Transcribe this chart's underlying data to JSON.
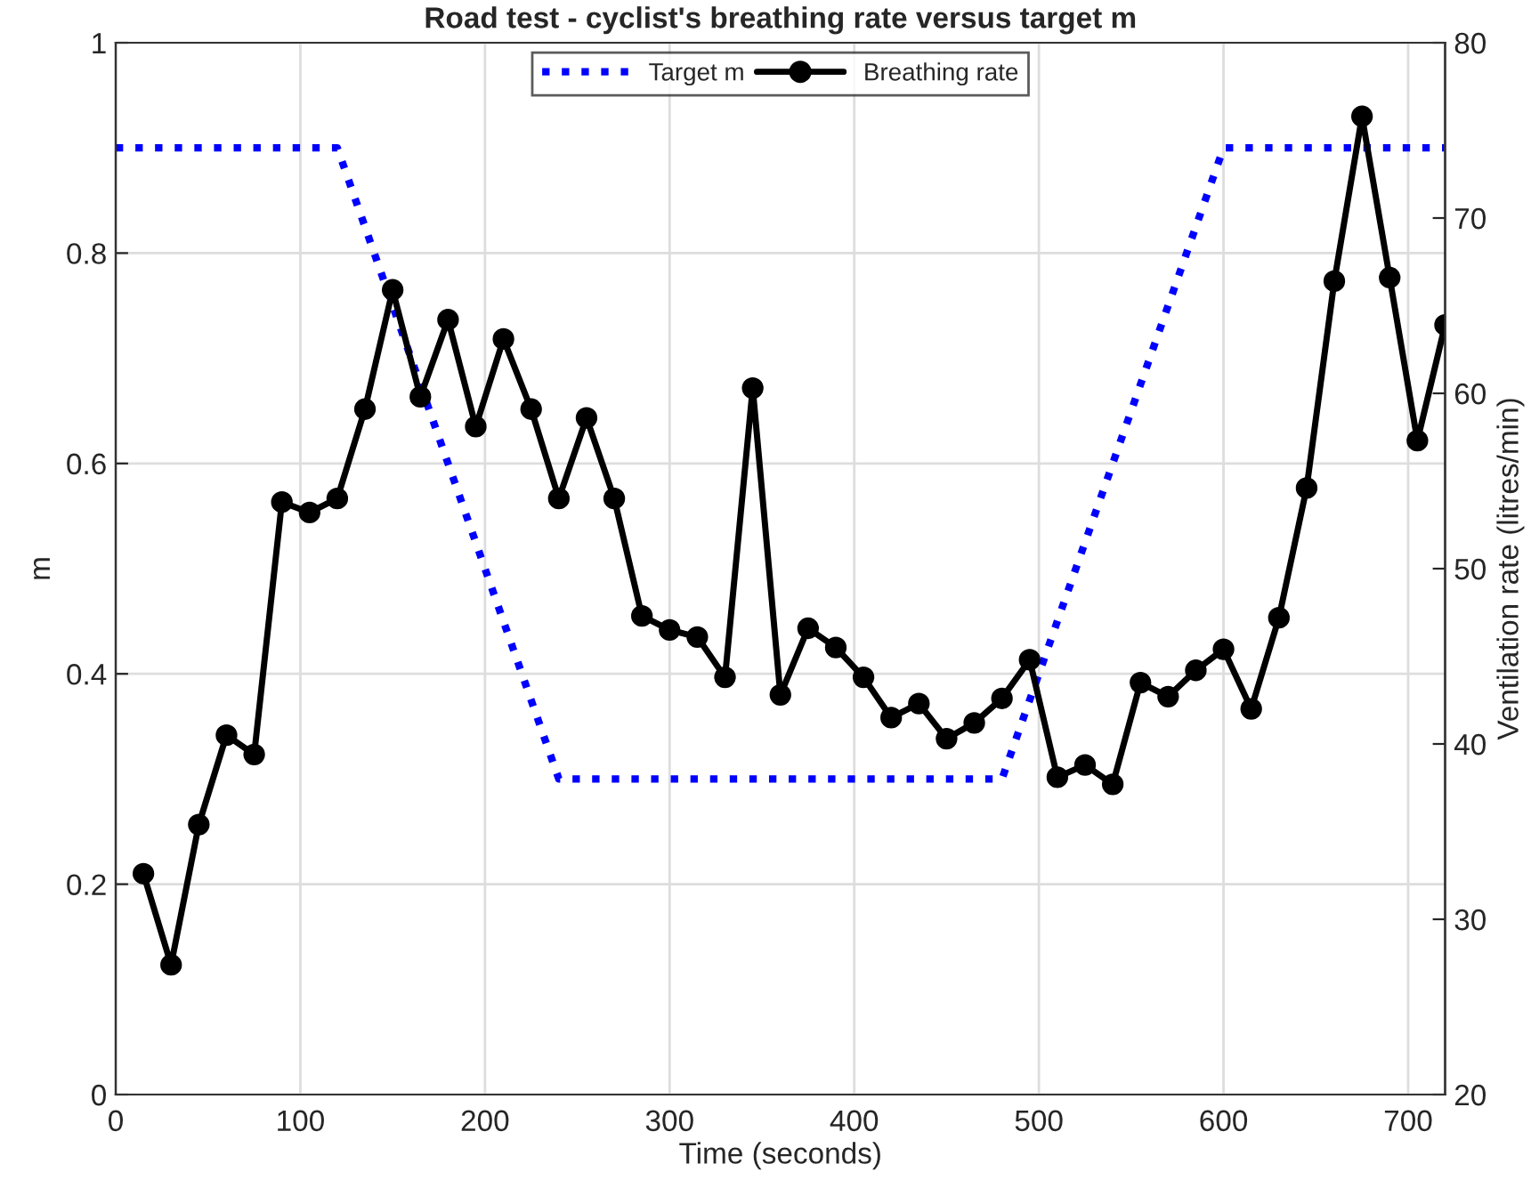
{
  "chart_data": {
    "type": "line",
    "title": "Road test - cyclist's breathing rate versus target m",
    "xlabel": "Time (seconds)",
    "ylabel": "m",
    "y2label": "Ventilation rate (litres/min)",
    "xlim": [
      0,
      720
    ],
    "xticks": [
      0,
      100,
      200,
      300,
      400,
      500,
      600,
      700
    ],
    "ylim": [
      0,
      1
    ],
    "yticks": [
      0,
      0.2,
      0.4,
      0.6,
      0.8,
      1
    ],
    "y2lim": [
      20,
      80
    ],
    "y2ticks": [
      20,
      30,
      40,
      50,
      60,
      70,
      80
    ],
    "grid": true,
    "legend": "top",
    "series": [
      {
        "name": "Target m",
        "color": "#0000ff",
        "line_style": "dotted",
        "marker": "none",
        "x": [
          0,
          120,
          240,
          480,
          600,
          720
        ],
        "values": [
          0.9,
          0.9,
          0.3,
          0.3,
          0.9,
          0.9
        ]
      },
      {
        "name": "Breathing rate",
        "color": "#000000",
        "line_style": "solid",
        "marker": "circle",
        "axis": "y2",
        "x": [
          15,
          30,
          45,
          60,
          75,
          90,
          105,
          120,
          135,
          150,
          165,
          180,
          195,
          210,
          225,
          240,
          255,
          270,
          285,
          300,
          315,
          330,
          345,
          360,
          375,
          390,
          405,
          420,
          435,
          450,
          465,
          480,
          495,
          510,
          525,
          540,
          555,
          570,
          585,
          600,
          615,
          630,
          645,
          660,
          675,
          690,
          705,
          720
        ],
        "values": [
          32.6,
          27.4,
          35.4,
          40.5,
          39.4,
          53.8,
          53.2,
          54.0,
          59.1,
          65.9,
          59.8,
          64.2,
          58.1,
          63.1,
          59.1,
          54.0,
          58.6,
          54.0,
          47.3,
          46.5,
          46.1,
          43.8,
          60.3,
          42.8,
          46.6,
          45.5,
          43.8,
          41.5,
          42.3,
          40.3,
          41.2,
          42.6,
          44.8,
          38.1,
          38.8,
          37.7,
          43.5,
          42.7,
          44.2,
          45.4,
          42.0,
          47.2,
          54.6,
          66.4,
          75.8,
          66.6,
          57.3,
          63.9
        ]
      }
    ]
  }
}
